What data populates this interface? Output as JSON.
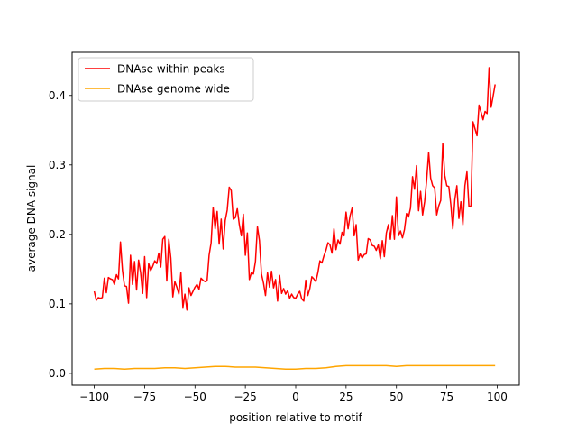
{
  "chart_data": {
    "type": "line",
    "title": "",
    "xlabel": "position relative to motif",
    "ylabel": "average DNA signal",
    "xlim": [
      -111,
      111
    ],
    "ylim": [
      -0.017,
      0.462
    ],
    "x_ticks": [
      -100,
      -75,
      -50,
      -25,
      0,
      25,
      50,
      75,
      100
    ],
    "x_tick_labels": [
      "−100",
      "−75",
      "−50",
      "−25",
      "0",
      "25",
      "50",
      "75",
      "100"
    ],
    "y_ticks": [
      0.0,
      0.1,
      0.2,
      0.3,
      0.4
    ],
    "y_tick_labels": [
      "0.0",
      "0.1",
      "0.2",
      "0.3",
      "0.4"
    ],
    "grid": false,
    "legend_position": "upper-left",
    "series": [
      {
        "name": "DNAse within peaks",
        "color": "#ff0000",
        "points": [
          [
            -100,
            0.118
          ],
          [
            -99,
            0.105
          ],
          [
            -98,
            0.109
          ],
          [
            -97,
            0.108
          ],
          [
            -96,
            0.109
          ],
          [
            -95,
            0.137
          ],
          [
            -94,
            0.116
          ],
          [
            -93,
            0.138
          ],
          [
            -92,
            0.136
          ],
          [
            -91,
            0.135
          ],
          [
            -90,
            0.128
          ],
          [
            -89,
            0.142
          ],
          [
            -88,
            0.136
          ],
          [
            -87,
            0.189
          ],
          [
            -86,
            0.148
          ],
          [
            -85,
            0.126
          ],
          [
            -84,
            0.125
          ],
          [
            -83,
            0.101
          ],
          [
            -82,
            0.17
          ],
          [
            -81,
            0.128
          ],
          [
            -80,
            0.161
          ],
          [
            -79,
            0.12
          ],
          [
            -78,
            0.163
          ],
          [
            -77,
            0.145
          ],
          [
            -76,
            0.115
          ],
          [
            -75,
            0.168
          ],
          [
            -74,
            0.109
          ],
          [
            -73,
            0.158
          ],
          [
            -72,
            0.148
          ],
          [
            -71,
            0.154
          ],
          [
            -70,
            0.162
          ],
          [
            -69,
            0.158
          ],
          [
            -68,
            0.173
          ],
          [
            -67,
            0.153
          ],
          [
            -66,
            0.193
          ],
          [
            -65,
            0.197
          ],
          [
            -64,
            0.133
          ],
          [
            -63,
            0.193
          ],
          [
            -62,
            0.166
          ],
          [
            -61,
            0.11
          ],
          [
            -60,
            0.132
          ],
          [
            -59,
            0.124
          ],
          [
            -58,
            0.114
          ],
          [
            -57,
            0.145
          ],
          [
            -56,
            0.095
          ],
          [
            -55,
            0.114
          ],
          [
            -54,
            0.091
          ],
          [
            -53,
            0.123
          ],
          [
            -52,
            0.112
          ],
          [
            -51,
            0.118
          ],
          [
            -50,
            0.124
          ],
          [
            -49,
            0.128
          ],
          [
            -48,
            0.121
          ],
          [
            -47,
            0.137
          ],
          [
            -46,
            0.134
          ],
          [
            -45,
            0.132
          ],
          [
            -44,
            0.133
          ],
          [
            -43,
            0.17
          ],
          [
            -42,
            0.188
          ],
          [
            -41,
            0.239
          ],
          [
            -40,
            0.208
          ],
          [
            -39,
            0.233
          ],
          [
            -38,
            0.186
          ],
          [
            -37,
            0.222
          ],
          [
            -36,
            0.179
          ],
          [
            -35,
            0.22
          ],
          [
            -34,
            0.235
          ],
          [
            -33,
            0.268
          ],
          [
            -32,
            0.263
          ],
          [
            -31,
            0.222
          ],
          [
            -30,
            0.224
          ],
          [
            -29,
            0.237
          ],
          [
            -28,
            0.214
          ],
          [
            -27,
            0.198
          ],
          [
            -26,
            0.229
          ],
          [
            -25,
            0.17
          ],
          [
            -24,
            0.202
          ],
          [
            -23,
            0.135
          ],
          [
            -22,
            0.145
          ],
          [
            -21,
            0.143
          ],
          [
            -20,
            0.161
          ],
          [
            -19,
            0.211
          ],
          [
            -18,
            0.191
          ],
          [
            -17,
            0.143
          ],
          [
            -16,
            0.13
          ],
          [
            -15,
            0.112
          ],
          [
            -14,
            0.145
          ],
          [
            -13,
            0.124
          ],
          [
            -12,
            0.147
          ],
          [
            -11,
            0.123
          ],
          [
            -10,
            0.135
          ],
          [
            -9,
            0.104
          ],
          [
            -8,
            0.141
          ],
          [
            -7,
            0.115
          ],
          [
            -6,
            0.122
          ],
          [
            -5,
            0.114
          ],
          [
            -4,
            0.119
          ],
          [
            -3,
            0.108
          ],
          [
            -2,
            0.114
          ],
          [
            -1,
            0.109
          ],
          [
            0,
            0.108
          ],
          [
            1,
            0.114
          ],
          [
            2,
            0.118
          ],
          [
            3,
            0.107
          ],
          [
            4,
            0.104
          ],
          [
            5,
            0.134
          ],
          [
            6,
            0.112
          ],
          [
            7,
            0.122
          ],
          [
            8,
            0.139
          ],
          [
            9,
            0.136
          ],
          [
            10,
            0.132
          ],
          [
            11,
            0.145
          ],
          [
            12,
            0.162
          ],
          [
            13,
            0.159
          ],
          [
            14,
            0.169
          ],
          [
            15,
            0.177
          ],
          [
            16,
            0.188
          ],
          [
            17,
            0.185
          ],
          [
            18,
            0.173
          ],
          [
            19,
            0.208
          ],
          [
            20,
            0.178
          ],
          [
            21,
            0.192
          ],
          [
            22,
            0.186
          ],
          [
            23,
            0.203
          ],
          [
            24,
            0.198
          ],
          [
            25,
            0.232
          ],
          [
            26,
            0.208
          ],
          [
            27,
            0.227
          ],
          [
            28,
            0.238
          ],
          [
            29,
            0.198
          ],
          [
            30,
            0.214
          ],
          [
            31,
            0.163
          ],
          [
            32,
            0.172
          ],
          [
            33,
            0.166
          ],
          [
            34,
            0.171
          ],
          [
            35,
            0.172
          ],
          [
            36,
            0.194
          ],
          [
            37,
            0.192
          ],
          [
            38,
            0.184
          ],
          [
            39,
            0.183
          ],
          [
            40,
            0.177
          ],
          [
            41,
            0.185
          ],
          [
            42,
            0.165
          ],
          [
            43,
            0.191
          ],
          [
            44,
            0.168
          ],
          [
            45,
            0.202
          ],
          [
            46,
            0.214
          ],
          [
            47,
            0.193
          ],
          [
            48,
            0.227
          ],
          [
            49,
            0.193
          ],
          [
            50,
            0.254
          ],
          [
            51,
            0.198
          ],
          [
            52,
            0.205
          ],
          [
            53,
            0.195
          ],
          [
            54,
            0.207
          ],
          [
            55,
            0.23
          ],
          [
            56,
            0.225
          ],
          [
            57,
            0.238
          ],
          [
            58,
            0.283
          ],
          [
            59,
            0.265
          ],
          [
            60,
            0.299
          ],
          [
            61,
            0.234
          ],
          [
            62,
            0.262
          ],
          [
            63,
            0.228
          ],
          [
            64,
            0.247
          ],
          [
            65,
            0.278
          ],
          [
            66,
            0.318
          ],
          [
            67,
            0.281
          ],
          [
            68,
            0.27
          ],
          [
            69,
            0.267
          ],
          [
            70,
            0.228
          ],
          [
            71,
            0.241
          ],
          [
            72,
            0.249
          ],
          [
            73,
            0.331
          ],
          [
            74,
            0.285
          ],
          [
            75,
            0.27
          ],
          [
            76,
            0.269
          ],
          [
            77,
            0.243
          ],
          [
            78,
            0.208
          ],
          [
            79,
            0.25
          ],
          [
            80,
            0.27
          ],
          [
            81,
            0.223
          ],
          [
            82,
            0.247
          ],
          [
            83,
            0.214
          ],
          [
            84,
            0.27
          ],
          [
            85,
            0.29
          ],
          [
            86,
            0.24
          ],
          [
            87,
            0.241
          ],
          [
            88,
            0.362
          ],
          [
            89,
            0.352
          ],
          [
            90,
            0.342
          ],
          [
            91,
            0.386
          ],
          [
            92,
            0.376
          ],
          [
            93,
            0.365
          ],
          [
            94,
            0.377
          ],
          [
            95,
            0.374
          ],
          [
            96,
            0.44
          ],
          [
            97,
            0.383
          ],
          [
            98,
            0.399
          ],
          [
            99,
            0.416
          ]
        ]
      },
      {
        "name": "DNAse genome wide",
        "color": "#ffa500",
        "points": [
          [
            -100,
            0.006
          ],
          [
            -95,
            0.007
          ],
          [
            -90,
            0.007
          ],
          [
            -85,
            0.006
          ],
          [
            -80,
            0.007
          ],
          [
            -75,
            0.007
          ],
          [
            -70,
            0.007
          ],
          [
            -65,
            0.008
          ],
          [
            -60,
            0.008
          ],
          [
            -55,
            0.007
          ],
          [
            -50,
            0.008
          ],
          [
            -45,
            0.009
          ],
          [
            -40,
            0.01
          ],
          [
            -35,
            0.01
          ],
          [
            -30,
            0.009
          ],
          [
            -25,
            0.009
          ],
          [
            -20,
            0.009
          ],
          [
            -15,
            0.008
          ],
          [
            -10,
            0.007
          ],
          [
            -5,
            0.006
          ],
          [
            0,
            0.006
          ],
          [
            5,
            0.007
          ],
          [
            10,
            0.007
          ],
          [
            15,
            0.008
          ],
          [
            20,
            0.01
          ],
          [
            25,
            0.011
          ],
          [
            30,
            0.011
          ],
          [
            35,
            0.011
          ],
          [
            40,
            0.011
          ],
          [
            45,
            0.011
          ],
          [
            50,
            0.01
          ],
          [
            55,
            0.011
          ],
          [
            60,
            0.011
          ],
          [
            65,
            0.011
          ],
          [
            70,
            0.011
          ],
          [
            75,
            0.011
          ],
          [
            80,
            0.011
          ],
          [
            85,
            0.011
          ],
          [
            90,
            0.011
          ],
          [
            95,
            0.011
          ],
          [
            99,
            0.011
          ]
        ]
      }
    ]
  }
}
